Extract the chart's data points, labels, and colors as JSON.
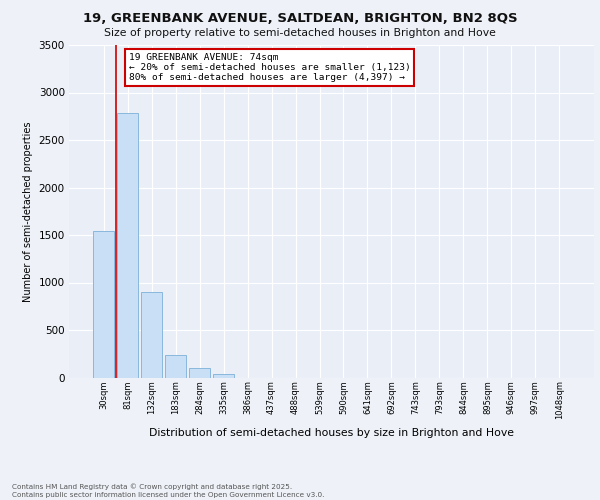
{
  "title_line1": "19, GREENBANK AVENUE, SALTDEAN, BRIGHTON, BN2 8QS",
  "title_line2": "Size of property relative to semi-detached houses in Brighton and Hove",
  "xlabel": "Distribution of semi-detached houses by size in Brighton and Hove",
  "ylabel": "Number of semi-detached properties",
  "categories": [
    "30sqm",
    "81sqm",
    "132sqm",
    "183sqm",
    "284sqm",
    "335sqm",
    "386sqm",
    "437sqm",
    "488sqm",
    "539sqm",
    "590sqm",
    "641sqm",
    "692sqm",
    "743sqm",
    "793sqm",
    "844sqm",
    "895sqm",
    "946sqm",
    "997sqm",
    "1048sqm"
  ],
  "values": [
    1540,
    2780,
    900,
    235,
    100,
    40,
    0,
    0,
    0,
    0,
    0,
    0,
    0,
    0,
    0,
    0,
    0,
    0,
    0,
    0
  ],
  "bar_color": "#c9dff5",
  "bar_edge_color": "#89b8dd",
  "vline_color": "#cc0000",
  "annotation_title": "19 GREENBANK AVENUE: 74sqm",
  "annotation_line2": "← 20% of semi-detached houses are smaller (1,123)",
  "annotation_line3": "80% of semi-detached houses are larger (4,397) →",
  "annotation_box_color": "#cc0000",
  "ylim": [
    0,
    3500
  ],
  "yticks": [
    0,
    500,
    1000,
    1500,
    2000,
    2500,
    3000,
    3500
  ],
  "footer_line1": "Contains HM Land Registry data © Crown copyright and database right 2025.",
  "footer_line2": "Contains public sector information licensed under the Open Government Licence v3.0.",
  "bg_color": "#eef2f8",
  "plot_bg_color": "#eaeff7",
  "grid_color": "#ffffff"
}
